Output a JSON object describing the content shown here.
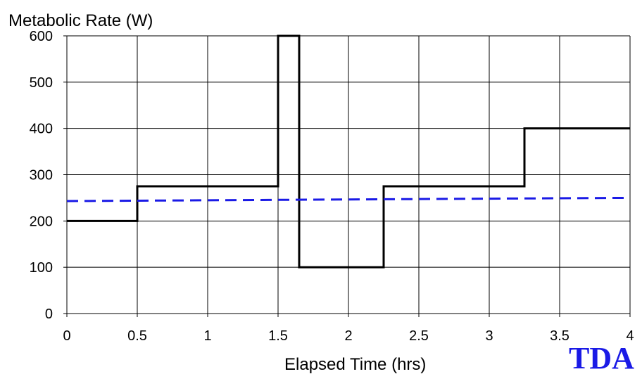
{
  "chart_data": {
    "type": "line",
    "ylabel": "Metabolic Rate (W)",
    "xlabel": "Elapsed Time (hrs)",
    "xlim": [
      0,
      4
    ],
    "ylim": [
      0,
      600
    ],
    "x_ticks": [
      "0",
      "0.5",
      "1",
      "1.5",
      "2",
      "2.5",
      "3",
      "3.5",
      "4"
    ],
    "y_ticks": [
      "0",
      "100",
      "200",
      "300",
      "400",
      "500",
      "600"
    ],
    "grid": true,
    "series": [
      {
        "style": "solid",
        "color": "#000000",
        "x": [
          0,
          0.5,
          0.5,
          1.5,
          1.5,
          1.65,
          1.65,
          2.25,
          2.25,
          3.25,
          3.25,
          4
        ],
        "y": [
          200,
          200,
          275,
          275,
          600,
          600,
          100,
          100,
          275,
          275,
          400,
          400
        ]
      },
      {
        "style": "dashed",
        "color": "#1a1ae6",
        "x": [
          0,
          4
        ],
        "y": [
          243,
          250
        ]
      }
    ]
  },
  "logo": {
    "text": "TDA",
    "color": "#1a1ae6"
  }
}
